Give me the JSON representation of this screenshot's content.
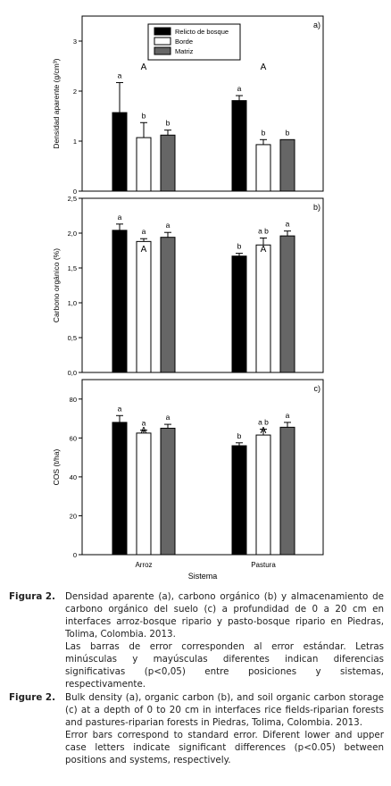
{
  "chart_data": [
    {
      "type": "bar",
      "panel": "a)",
      "ylabel": "Densidad aparente (g/cm³)",
      "ylim": [
        0,
        3.5
      ],
      "yticks": [
        "0",
        "1",
        "2",
        "3"
      ],
      "ytick_values": [
        0,
        1,
        2,
        3
      ],
      "categories": [
        "Arroz",
        "Pastura"
      ],
      "group_letters": [
        "A",
        "A"
      ],
      "series": [
        {
          "name": "Relicto de bosque",
          "color": "#000000",
          "values": [
            1.57,
            1.81
          ],
          "errors": [
            0.6,
            0.1
          ],
          "letters": [
            "a",
            "a"
          ]
        },
        {
          "name": "Borde",
          "color": "#ffffff",
          "values": [
            1.07,
            0.93
          ],
          "errors": [
            0.3,
            0.1
          ],
          "letters": [
            "b",
            "b"
          ]
        },
        {
          "name": "Matriz",
          "color": "#666666",
          "values": [
            1.12,
            1.03
          ],
          "errors": [
            0.1,
            0.0
          ],
          "letters": [
            "b",
            "b"
          ]
        }
      ],
      "legend_position": "top-center"
    },
    {
      "type": "bar",
      "panel": "b)",
      "ylabel": "Carbono orgánico (%)",
      "ylim": [
        0,
        2.5
      ],
      "yticks": [
        "0,0",
        "0,5",
        "1,0",
        "1,5",
        "2,0",
        "2,5"
      ],
      "ytick_values": [
        0,
        0.5,
        1.0,
        1.5,
        2.0,
        2.5
      ],
      "categories": [
        "Arroz",
        "Pastura"
      ],
      "group_letters": [
        "A",
        "A"
      ],
      "series": [
        {
          "name": "Relicto de bosque",
          "color": "#000000",
          "values": [
            2.04,
            1.67
          ],
          "errors": [
            0.09,
            0.04
          ],
          "letters": [
            "a",
            "b"
          ]
        },
        {
          "name": "Borde",
          "color": "#ffffff",
          "values": [
            1.88,
            1.83
          ],
          "errors": [
            0.04,
            0.1
          ],
          "letters": [
            "a",
            "a b"
          ]
        },
        {
          "name": "Matriz",
          "color": "#666666",
          "values": [
            1.94,
            1.96
          ],
          "errors": [
            0.07,
            0.07
          ],
          "letters": [
            "a",
            "a"
          ]
        }
      ]
    },
    {
      "type": "bar",
      "panel": "c)",
      "ylabel": "COS (t/ha)",
      "xlabel": "Sistema",
      "ylim": [
        0,
        90
      ],
      "yticks": [
        "0",
        "20",
        "40",
        "60",
        "80"
      ],
      "ytick_values": [
        0,
        20,
        40,
        60,
        80
      ],
      "categories": [
        "Arroz",
        "Pastura"
      ],
      "group_letters": [
        "A",
        "A"
      ],
      "series": [
        {
          "name": "Relicto de bosque",
          "color": "#000000",
          "values": [
            68,
            56
          ],
          "errors": [
            3.5,
            1.5
          ],
          "letters": [
            "a",
            "b"
          ]
        },
        {
          "name": "Borde",
          "color": "#ffffff",
          "values": [
            62.5,
            61.5
          ],
          "errors": [
            1.5,
            3.0
          ],
          "letters": [
            "a",
            "a b"
          ]
        },
        {
          "name": "Matriz",
          "color": "#666666",
          "values": [
            65,
            65.5
          ],
          "errors": [
            2.0,
            2.5
          ],
          "letters": [
            "a",
            "a"
          ]
        }
      ]
    }
  ],
  "captions": [
    {
      "label": "Figura 2.",
      "paragraphs": [
        "Densidad aparente (a), carbono orgánico (b) y almacenamiento de carbono orgánico del suelo (c) a profundidad de 0 a 20 cm en interfaces arroz-bosque ripario y pasto-bosque ripario en Piedras, Tolima, Colombia. 2013.",
        "Las barras de error corresponden al error estándar. Letras minúsculas y mayúsculas diferentes indican diferencias significativas (p<0,05) entre posiciones y sistemas, respectivamente."
      ]
    },
    {
      "label": "Figure 2.",
      "paragraphs": [
        "Bulk density (a), organic carbon (b), and soil organic carbon storage (c) at a depth of 0 to 20 cm in interfaces rice fields-riparian forests and pastures-riparian forests in Piedras, Tolima, Colombia. 2013.",
        "Error bars correspond to standard error. Diferent lower and upper case letters indicate significant differences (p<0.05) between positions and systems, respectively."
      ]
    }
  ]
}
